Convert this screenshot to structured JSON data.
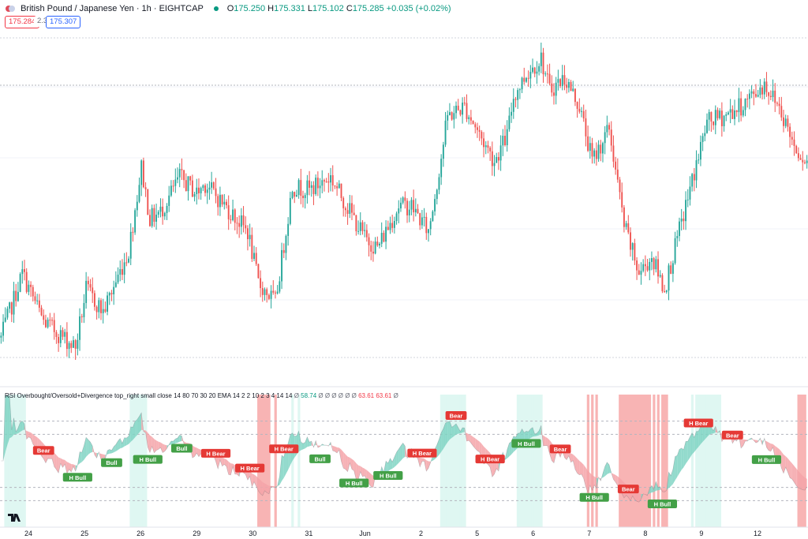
{
  "header": {
    "title": "British Pound / Japanese Yen · 1h · EIGHTCAP",
    "ohlc": [
      {
        "k": "O",
        "v": "175.250"
      },
      {
        "k": "H",
        "v": "175.331"
      },
      {
        "k": "L",
        "v": "175.102"
      },
      {
        "k": "C",
        "v": "175.285"
      }
    ],
    "change": "+0.035 (+0.02%)",
    "bid": "175.284",
    "spread": "2.3",
    "ask": "175.307"
  },
  "indicator": {
    "name": "RSI Overbought/Oversold+Divergence top_right small close 14 80 70 30 20 EMA 14 2 2 10 2 3 4 14 14",
    "values": [
      "Ø",
      "58.74",
      "Ø",
      "Ø",
      "Ø",
      "Ø",
      "Ø",
      "Ø",
      "63.61",
      "63.61",
      "Ø"
    ]
  },
  "chart_data": {
    "type": "candlestick",
    "instrument": "British Pound / Japanese Yen",
    "timeframe": "1h",
    "x_tick_labels": [
      "24",
      "25",
      "26",
      "29",
      "30",
      "31",
      "Jun",
      "2",
      "5",
      "6",
      "7",
      "8",
      "9",
      "12"
    ],
    "price_anchors": {
      "description": "approximate close path",
      "points": [
        [
          0,
          0.25
        ],
        [
          10,
          0.45
        ],
        [
          20,
          0.3
        ],
        [
          35,
          0.22
        ],
        [
          40,
          0.4
        ],
        [
          48,
          0.33
        ],
        [
          60,
          0.52
        ],
        [
          66,
          0.78
        ],
        [
          70,
          0.62
        ],
        [
          75,
          0.64
        ],
        [
          84,
          0.75
        ],
        [
          92,
          0.7
        ],
        [
          96,
          0.73
        ],
        [
          108,
          0.64
        ],
        [
          116,
          0.58
        ],
        [
          121,
          0.42
        ],
        [
          129,
          0.36
        ],
        [
          137,
          0.72
        ],
        [
          145,
          0.71
        ],
        [
          155,
          0.75
        ],
        [
          166,
          0.62
        ],
        [
          171,
          0.56
        ],
        [
          177,
          0.53
        ],
        [
          187,
          0.66
        ],
        [
          193,
          0.66
        ],
        [
          201,
          0.58
        ],
        [
          205,
          0.73
        ],
        [
          210,
          0.94
        ],
        [
          218,
          0.97
        ],
        [
          226,
          0.87
        ],
        [
          232,
          0.8
        ],
        [
          238,
          0.88
        ],
        [
          241,
          1.0
        ],
        [
          247,
          1.07
        ],
        [
          254,
          1.12
        ],
        [
          258,
          1.02
        ],
        [
          265,
          1.06
        ],
        [
          272,
          0.97
        ],
        [
          278,
          0.8
        ],
        [
          286,
          0.9
        ],
        [
          293,
          0.6
        ],
        [
          300,
          0.45
        ],
        [
          306,
          0.5
        ],
        [
          312,
          0.4
        ],
        [
          322,
          0.66
        ],
        [
          332,
          0.92
        ],
        [
          340,
          0.94
        ],
        [
          348,
          0.97
        ],
        [
          359,
          1.04
        ],
        [
          366,
          0.97
        ],
        [
          373,
          0.85
        ],
        [
          380,
          0.79
        ]
      ],
      "note": "Relative shape only; values are in units of roughly 1.0 yen"
    },
    "rsi_levels": [
      80,
      70,
      30,
      20
    ],
    "divergence_labels": [
      "Bear",
      "H Bull",
      "Bull",
      "H Bull",
      "Bull",
      "H Bear",
      "H Bear",
      "H Bear",
      "Bull",
      "H Bull",
      "H Bull",
      "H Bear",
      "Bear",
      "H Bear",
      "H Bull",
      "Bear",
      "H Bull",
      "Bear",
      "H Bull",
      "H Bear",
      "Bear",
      "H Bull"
    ]
  },
  "colors": {
    "up": "#26a69a",
    "down": "#ef5350",
    "bid_box": "#f23645",
    "ask_box": "#2962ff",
    "bull_label": "#43a047",
    "bear_label": "#e53935",
    "rsi_fill_up": "#7fd3c3",
    "rsi_fill_down": "#f5a3a8",
    "oversold_band": "#f8b4b4",
    "overbought_band": "#dff7f2"
  }
}
